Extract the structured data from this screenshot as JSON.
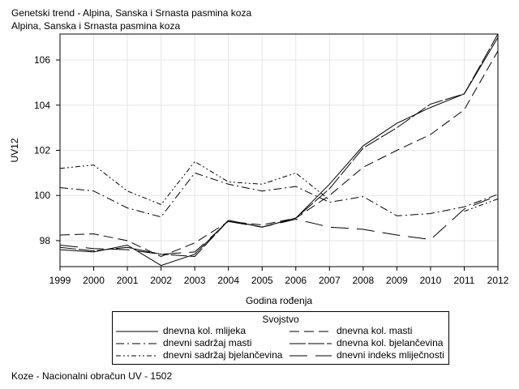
{
  "title": "Genetski trend - Alpina, Sanska i Srnasta pasmina koza",
  "subtitle": "Alpina, Sanska i Srnasta pasmina koza",
  "footnote": "Koze - Nacionalni obračun UV - 1502",
  "chart_data": {
    "type": "line",
    "xlabel": "Godina rođenja",
    "ylabel": "UV12",
    "x": [
      1999,
      2000,
      2001,
      2002,
      2003,
      2004,
      2005,
      2006,
      2007,
      2008,
      2009,
      2010,
      2011,
      2012
    ],
    "xlim": [
      1999,
      2012
    ],
    "ylim": [
      96.85,
      107.15
    ],
    "yticks": [
      98,
      100,
      102,
      104,
      106
    ],
    "grid": true,
    "legend": {
      "title": "Svojstvo",
      "placement": "bottom"
    },
    "series": [
      {
        "name": "dnevna kol. mlijeka",
        "dash": "none",
        "values": [
          97.6,
          97.5,
          97.8,
          96.9,
          97.4,
          98.9,
          98.6,
          99.0,
          100.5,
          102.2,
          103.2,
          103.9,
          104.5,
          107.0
        ]
      },
      {
        "name": "dnevna kol. masti",
        "dash": "12,6",
        "values": [
          98.25,
          98.3,
          98.0,
          97.3,
          97.9,
          98.85,
          98.7,
          99.0,
          100.0,
          101.25,
          102.0,
          102.7,
          103.8,
          106.4
        ]
      },
      {
        "name": "dnevni sadržaj masti",
        "dash": "10,4,2,4",
        "values": [
          100.35,
          100.2,
          99.45,
          99.05,
          101.0,
          100.5,
          100.2,
          100.4,
          99.7,
          99.95,
          99.1,
          99.2,
          99.5,
          100.05
        ]
      },
      {
        "name": "dnevna kol. bjelančevina",
        "dash": "20,3",
        "values": [
          97.7,
          97.55,
          97.7,
          97.4,
          97.3,
          98.9,
          98.6,
          99.0,
          100.3,
          102.1,
          103.0,
          104.05,
          104.5,
          107.15
        ]
      },
      {
        "name": "dnevni sadržaj bjelančevina",
        "dash": "6,3,2,3,2,3",
        "values": [
          101.2,
          101.35,
          100.2,
          99.6,
          101.5,
          100.6,
          100.5,
          101.0,
          99.8,
          null,
          null,
          null,
          99.3,
          99.85
        ]
      },
      {
        "name": "dnevni indeks mliječnosti",
        "dash": "22,10",
        "values": [
          97.8,
          97.65,
          97.6,
          97.4,
          97.5,
          98.85,
          98.6,
          98.95,
          98.6,
          98.5,
          98.25,
          98.05,
          99.4,
          100.0
        ]
      }
    ]
  }
}
